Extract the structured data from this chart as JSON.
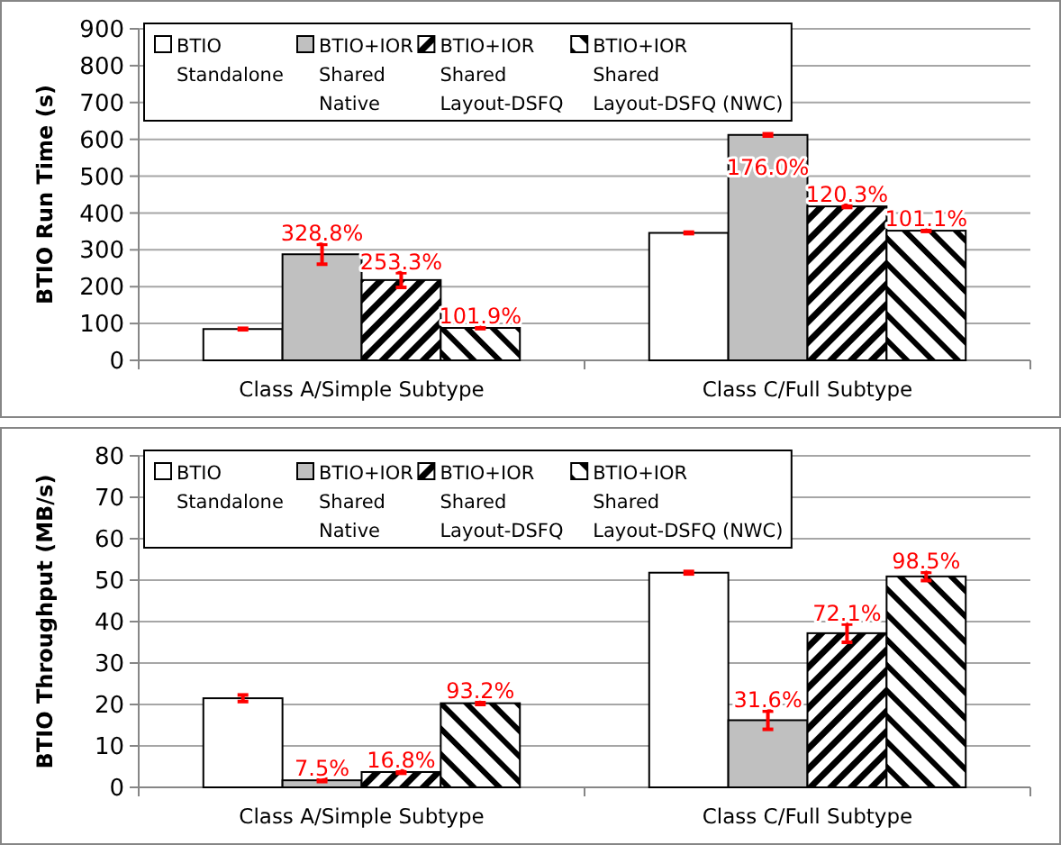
{
  "chart_data": [
    {
      "type": "bar",
      "ylabel": "BTIO Run Time (s)",
      "categories": [
        "Class A/Simple Subtype",
        "Class C/Full Subtype"
      ],
      "ylim": [
        0,
        900
      ],
      "yticks": [
        0,
        100,
        200,
        300,
        400,
        500,
        600,
        700,
        800,
        900
      ],
      "grid": "y",
      "legend": "top left",
      "series": [
        {
          "name": "BTIO Standalone",
          "color": "#ffffff",
          "values": [
            85,
            346
          ],
          "errors": [
            2,
            2
          ]
        },
        {
          "name": "BTIO+IOR Shared Native",
          "color": "#c0c0c0",
          "values": [
            288,
            612
          ],
          "errors": [
            27,
            3
          ]
        },
        {
          "name": "BTIO+IOR Shared Layout-DSFQ",
          "color": "#000000",
          "values": [
            218,
            418
          ],
          "errors": [
            20,
            3
          ]
        },
        {
          "name": "BTIO+IOR Shared Layout-DSFQ (NWC)",
          "color": "#000000",
          "values": [
            88,
            352
          ],
          "errors": [
            2,
            2
          ]
        }
      ],
      "annotations": [
        {
          "text": "328.8%",
          "x": "Class A/Simple Subtype",
          "y": 288
        },
        {
          "text": "253.3%",
          "x": "Class A/Simple Subtype",
          "y": 218
        },
        {
          "text": "176.0%",
          "x": "Class C/Full Subtype",
          "y": 612
        },
        {
          "text": "120.3%",
          "x": "Class C/Full Subtype",
          "y": 418
        },
        "101.9%",
        "101.1%"
      ]
    },
    {
      "type": "bar",
      "ylabel": "BTIO Throughput (MB/s)",
      "categories": [
        "Class A/Simple Subtype",
        "Class C/Full Subtype"
      ],
      "ylim": [
        0,
        80
      ],
      "yticks": [
        0,
        10,
        20,
        30,
        40,
        50,
        60,
        70,
        80
      ],
      "grid": "y",
      "legend": "top left",
      "series": [
        {
          "name": "BTIO Standalone",
          "color": "#ffffff",
          "values": [
            21.5,
            51.8
          ],
          "errors": [
            0.8,
            0.3
          ]
        },
        {
          "name": "BTIO+IOR Shared Native",
          "color": "#c0c0c0",
          "values": [
            1.7,
            16.2
          ],
          "errors": [
            0.3,
            2.2
          ]
        },
        {
          "name": "BTIO+IOR Shared Layout-DSFQ",
          "color": "#000000",
          "values": [
            3.7,
            37.2
          ],
          "errors": [
            0.3,
            2.2
          ]
        },
        {
          "name": "BTIO+IOR Shared Layout-DSFQ (NWC)",
          "color": "#000000",
          "values": [
            20.3,
            50.9
          ],
          "errors": [
            0.3,
            1
          ]
        }
      ],
      "annotations": [
        {
          "text": "7.5%",
          "x": "Class A/Simple Subtype",
          "y": 1.7
        },
        {
          "text": "16.8%",
          "x": "Class A/Simple Subtype",
          "y": 3.7
        },
        {
          "text": "31.6%",
          "x": "Class C/Full Subtype",
          "y": 16.2
        },
        {
          "text": "72.1%",
          "x": "Class C/Full Subtype",
          "y": 37.2
        },
        "93.2%",
        "98.5%"
      ]
    }
  ]
}
